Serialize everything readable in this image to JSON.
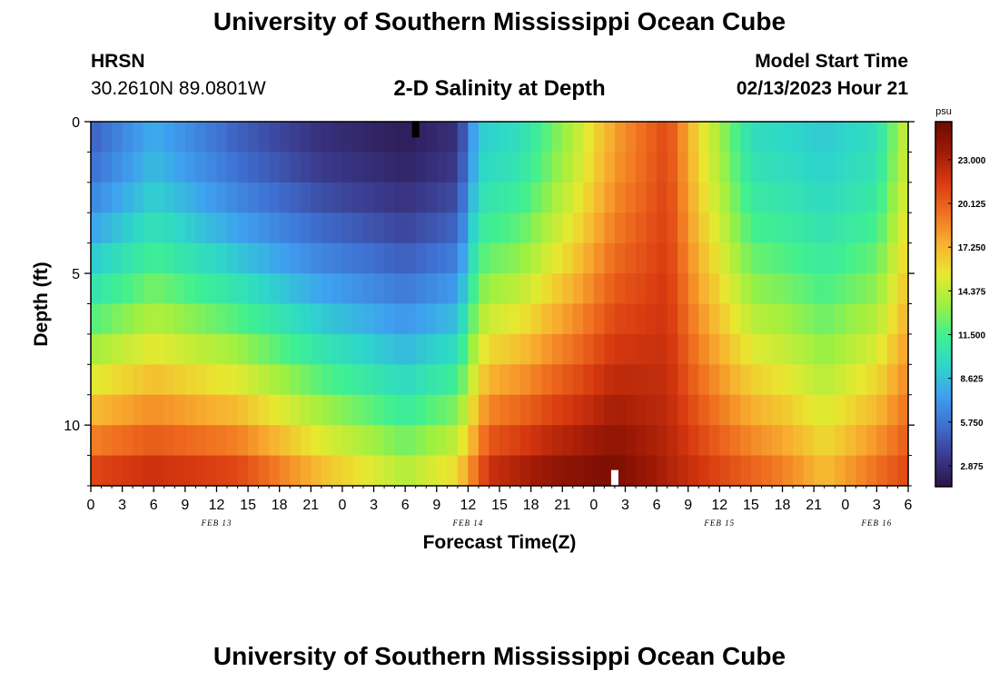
{
  "header": {
    "title": "University of Southern Mississippi Ocean Cube",
    "station": "HRSN",
    "coords": "30.2610N  89.0801W",
    "subtitle": "2-D Salinity at Depth",
    "start_label": "Model Start Time",
    "start_value": "02/13/2023 Hour 21"
  },
  "footer": {
    "title": "University of Southern Mississippi Ocean Cube"
  },
  "chart_data": {
    "type": "heatmap",
    "title": "2-D Salinity at Depth",
    "xlabel": "Forecast Time(Z)",
    "ylabel": "Depth (ft)",
    "x_start": 0,
    "x_end": 78,
    "x_tick_labels": [
      "0",
      "3",
      "6",
      "9",
      "12",
      "15",
      "18",
      "21",
      "0",
      "3",
      "6",
      "9",
      "12",
      "15",
      "18",
      "21",
      "0",
      "3",
      "6",
      "9",
      "12",
      "15",
      "18",
      "21",
      "0",
      "3",
      "6"
    ],
    "date_labels": [
      {
        "label": "FEB 13",
        "hour": 12
      },
      {
        "label": "FEB 14",
        "hour": 36
      },
      {
        "label": "FEB 15",
        "hour": 60
      },
      {
        "label": "FEB 16",
        "hour": 75
      }
    ],
    "ylim": [
      0,
      12
    ],
    "y_ticks": [
      0,
      5,
      10
    ],
    "depth_rows": [
      0.5,
      1.5,
      2.5,
      3.5,
      4.5,
      5.5,
      6.5,
      7.5,
      8.5,
      9.5,
      10.5,
      11.5
    ],
    "depth_time_series_salinity_psu": {
      "row_0_5ft": [
        {
          "h": 0,
          "v": 5
        },
        {
          "h": 6,
          "v": 8
        },
        {
          "h": 14,
          "v": 5
        },
        {
          "h": 22,
          "v": 3
        },
        {
          "h": 30,
          "v": 2
        },
        {
          "h": 35,
          "v": 3
        },
        {
          "h": 37,
          "v": 9
        },
        {
          "h": 41,
          "v": 10
        },
        {
          "h": 46,
          "v": 14
        },
        {
          "h": 50,
          "v": 18
        },
        {
          "h": 55,
          "v": 21
        },
        {
          "h": 58,
          "v": 16
        },
        {
          "h": 63,
          "v": 10
        },
        {
          "h": 70,
          "v": 9
        },
        {
          "h": 75,
          "v": 10
        },
        {
          "h": 78,
          "v": 15
        }
      ],
      "row_11_5ft": [
        {
          "h": 0,
          "v": 21
        },
        {
          "h": 6,
          "v": 22
        },
        {
          "h": 14,
          "v": 21
        },
        {
          "h": 22,
          "v": 17
        },
        {
          "h": 30,
          "v": 14
        },
        {
          "h": 35,
          "v": 16
        },
        {
          "h": 38,
          "v": 22
        },
        {
          "h": 44,
          "v": 24
        },
        {
          "h": 50,
          "v": 25
        },
        {
          "h": 55,
          "v": 23
        },
        {
          "h": 60,
          "v": 21
        },
        {
          "h": 66,
          "v": 19
        },
        {
          "h": 70,
          "v": 17
        },
        {
          "h": 74,
          "v": 19
        },
        {
          "h": 78,
          "v": 21
        }
      ]
    },
    "colorbar": {
      "unit": "psu",
      "min": 1.5,
      "max": 25.5,
      "ticks": [
        "2.875",
        "5.750",
        "8.625",
        "11.500",
        "14.375",
        "17.250",
        "20.125",
        "23.000"
      ],
      "colors": [
        "#2a1448",
        "#3b3a8c",
        "#3f6fd0",
        "#3fa0f0",
        "#2ed8c8",
        "#40f090",
        "#a0f040",
        "#e8e830",
        "#f8b030",
        "#f07020",
        "#d83a10",
        "#a01a06",
        "#6e0a02"
      ]
    },
    "markers": [
      {
        "shape": "black-bar",
        "hour": 31,
        "depth": 0.25
      },
      {
        "shape": "white-bar",
        "hour": 50,
        "depth": 11.75
      }
    ]
  }
}
